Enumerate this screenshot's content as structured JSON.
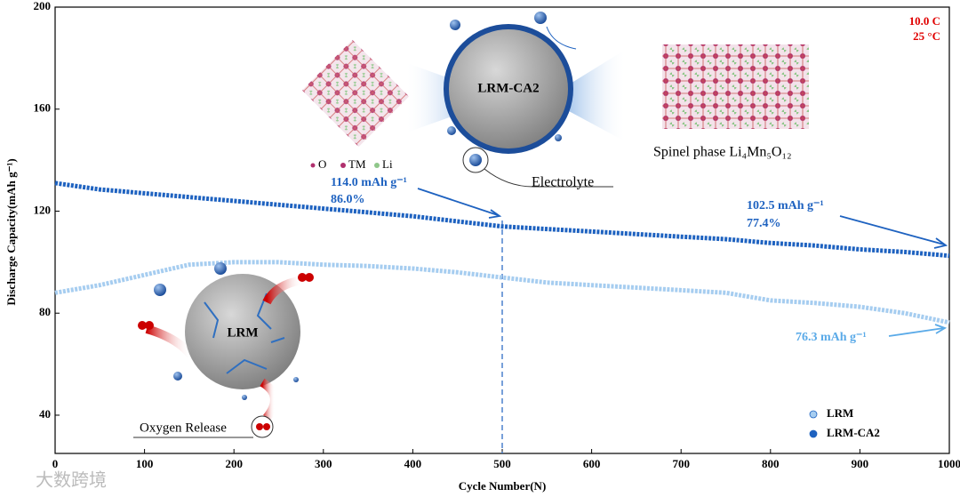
{
  "chart_data": {
    "type": "line",
    "x_label": "Cycle Number(N)",
    "y_label": "Discharge Capacity(mAh g⁻¹)",
    "x": [
      0,
      50,
      100,
      150,
      200,
      250,
      300,
      350,
      400,
      450,
      500,
      550,
      600,
      650,
      700,
      750,
      800,
      850,
      900,
      950,
      1000
    ],
    "series": [
      {
        "name": "LRM",
        "color": "#a6cdf0",
        "values": [
          88,
          91,
          95,
          99,
          100,
          100,
          99,
          98.5,
          97.5,
          96,
          94,
          92,
          91,
          90,
          89,
          88,
          85,
          84,
          82.5,
          80,
          76.3
        ]
      },
      {
        "name": "LRM-CA2",
        "color": "#1e62c0",
        "values": [
          131,
          128.5,
          127,
          125.5,
          124,
          122.5,
          121,
          119.5,
          118,
          116,
          114,
          113,
          112,
          111,
          110,
          109,
          107.5,
          106.5,
          105,
          104,
          102.5
        ]
      }
    ],
    "xlim": [
      0,
      1000
    ],
    "ylim": [
      25,
      200
    ],
    "xticks": [
      0,
      100,
      200,
      300,
      400,
      500,
      600,
      700,
      800,
      900,
      1000
    ],
    "yticks": [
      40,
      80,
      120,
      160,
      200
    ],
    "marker_x": 500,
    "conditions": [
      "10.0 C",
      "25 °C"
    ],
    "annotations": [
      "114.0 mAh g⁻¹",
      "86.0%",
      "102.5 mAh g⁻¹",
      "77.4%",
      "76.3 mAh g⁻¹"
    ],
    "insets": {
      "particle_top": "LRM-CA2",
      "particle_bottom": "LRM",
      "spinel": "Spinel phase Li₄Mn₅O₁₂",
      "electrolyte": "Electrolyte",
      "oxygen": "Oxygen Release",
      "atoms": [
        "O",
        "TM",
        "Li"
      ]
    },
    "legend": "lower right",
    "watermark": "大数跨境"
  }
}
